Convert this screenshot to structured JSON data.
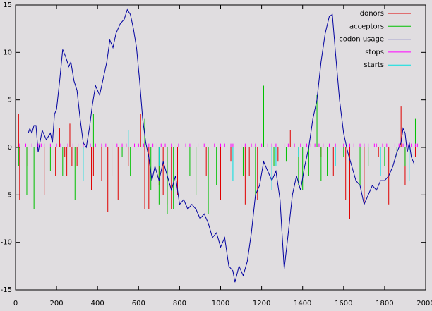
{
  "chart_data": {
    "type": "line",
    "xlim": [
      0,
      2000
    ],
    "xticks": [
      0,
      200,
      400,
      600,
      800,
      1000,
      1200,
      1400,
      1600,
      1800,
      2000
    ],
    "ylim": [
      -15,
      15
    ],
    "yticks": [
      -15,
      -10,
      -5,
      0,
      5,
      10,
      15
    ],
    "legend": "top-right",
    "series": [
      {
        "name": "donors",
        "color": "#e00000",
        "style": "impulses",
        "x": [
          15,
          20,
          60,
          140,
          195,
          215,
          240,
          250,
          265,
          275,
          300,
          370,
          380,
          420,
          450,
          470,
          500,
          550,
          610,
          630,
          650,
          700,
          720,
          740,
          760,
          790,
          930,
          1000,
          1050,
          1120,
          1140,
          1180,
          1280,
          1340,
          1490,
          1550,
          1610,
          1630,
          1700,
          1770,
          1820,
          1880,
          1900,
          1950
        ],
        "values": [
          3.5,
          -5.5,
          -2,
          -5,
          -3,
          2,
          -1,
          -3,
          2.5,
          -2,
          -2,
          -4.5,
          -3,
          -3.5,
          -6.8,
          -3,
          -5.5,
          -2,
          3.5,
          -6.5,
          -6.5,
          -4,
          -5,
          -6,
          -6.5,
          -5,
          -3,
          -5.5,
          -1.5,
          -6,
          -3,
          -5.5,
          -1.5,
          1.8,
          -1,
          -3,
          -5.5,
          -7.5,
          -6,
          -1,
          -6,
          4.3,
          -4,
          -1
        ]
      },
      {
        "name": "acceptors",
        "color": "#00c000",
        "style": "impulses",
        "x": [
          15,
          55,
          90,
          170,
          230,
          290,
          380,
          520,
          560,
          630,
          660,
          700,
          740,
          770,
          850,
          880,
          940,
          980,
          1110,
          1170,
          1210,
          1260,
          1320,
          1380,
          1400,
          1430,
          1470,
          1490,
          1520,
          1600,
          1680,
          1720,
          1800,
          1860,
          1900,
          1950
        ],
        "values": [
          -2,
          -5,
          -6.5,
          -2.5,
          -3,
          -5.5,
          3.5,
          -1,
          -3,
          3,
          -4.5,
          -6,
          -7,
          -6.5,
          -3,
          -5,
          -7,
          -4,
          -3,
          -5,
          6.5,
          -2,
          -1.5,
          -4,
          -4.5,
          -3,
          5.5,
          -3.5,
          -3,
          -1,
          -4,
          -2,
          -2,
          -1,
          -2,
          3
        ]
      },
      {
        "name": "codon usage",
        "color": "#0000a0",
        "style": "lines",
        "x": [
          62,
          70,
          80,
          90,
          100,
          110,
          130,
          150,
          170,
          180,
          190,
          200,
          215,
          230,
          245,
          260,
          270,
          285,
          300,
          315,
          330,
          345,
          360,
          375,
          390,
          410,
          425,
          445,
          460,
          475,
          490,
          510,
          530,
          545,
          560,
          575,
          590,
          605,
          620,
          635,
          650,
          665,
          680,
          700,
          720,
          740,
          760,
          780,
          800,
          820,
          840,
          860,
          880,
          900,
          920,
          940,
          960,
          980,
          1000,
          1020,
          1040,
          1060,
          1070,
          1090,
          1110,
          1130,
          1150,
          1170,
          1190,
          1210,
          1230,
          1250,
          1270,
          1290,
          1310,
          1330,
          1350,
          1370,
          1390,
          1410,
          1430,
          1450,
          1470,
          1490,
          1510,
          1530,
          1545,
          1560,
          1580,
          1600,
          1620,
          1640,
          1660,
          1680,
          1700,
          1720,
          1740,
          1760,
          1780,
          1800,
          1820,
          1840,
          1860,
          1880,
          1890,
          1900,
          1910,
          1920,
          1930,
          1945
        ],
        "values": [
          1.5,
          2,
          1.5,
          2.3,
          2.3,
          -0.5,
          1.8,
          0.8,
          1.5,
          0.5,
          3.5,
          4,
          7,
          10.3,
          9.5,
          8.5,
          9,
          7,
          6,
          3,
          0.5,
          0,
          2,
          4.5,
          6.5,
          5.5,
          7,
          9,
          11.3,
          10.5,
          12,
          13,
          13.5,
          14.5,
          14,
          12.5,
          10.5,
          7,
          3,
          0.5,
          -1,
          -3.5,
          -2,
          -3.5,
          -1.5,
          -3,
          -4.5,
          -3,
          -6,
          -5.5,
          -6.5,
          -6,
          -6.5,
          -7.5,
          -7,
          -8,
          -9.5,
          -9,
          -10.5,
          -9.5,
          -12.5,
          -13,
          -14.2,
          -12.5,
          -13.5,
          -12,
          -9,
          -5,
          -4,
          -1.5,
          -2.5,
          -3.5,
          -2.5,
          -5.5,
          -12.8,
          -9,
          -5,
          -3,
          -4.5,
          -2,
          0,
          3,
          5,
          9,
          12,
          13.8,
          14,
          10,
          5,
          1.5,
          -0.5,
          -2,
          -3.5,
          -4,
          -6,
          -5,
          -4,
          -4.5,
          -3.5,
          -3.5,
          -3,
          -2,
          -0.5,
          0.5,
          2,
          1.5,
          -0.5,
          0.5,
          -1,
          -1.8
        ]
      },
      {
        "name": "stops",
        "color": "#ff00ff",
        "style": "impulses",
        "x": [
          20,
          50,
          80,
          110,
          125,
          140,
          170,
          200,
          220,
          255,
          280,
          305,
          330,
          365,
          390,
          420,
          440,
          470,
          495,
          520,
          540,
          580,
          600,
          625,
          650,
          670,
          690,
          710,
          730,
          760,
          795,
          830,
          850,
          890,
          920,
          970,
          1000,
          1020,
          1050,
          1060,
          1100,
          1120,
          1150,
          1170,
          1200,
          1230,
          1250,
          1270,
          1310,
          1330,
          1360,
          1390,
          1420,
          1440,
          1460,
          1480,
          1500,
          1530,
          1560,
          1600,
          1630,
          1650,
          1680,
          1700,
          1720,
          1750,
          1760,
          1790,
          1810,
          1850,
          1870,
          1890,
          1910,
          1930,
          1950,
          1960
        ],
        "values": [
          0.4,
          0.4,
          0.4,
          0.4,
          0.4,
          0.4,
          0.4,
          0.4,
          0.4,
          0.4,
          0.4,
          0.4,
          0.4,
          0.4,
          0.4,
          0.4,
          0.4,
          0.4,
          0.4,
          0.4,
          0.4,
          0.4,
          0.4,
          0.4,
          0.4,
          0.4,
          0.4,
          0.4,
          0.4,
          0.4,
          0.4,
          0.4,
          0.4,
          0.4,
          0.4,
          0.4,
          0.4,
          0.4,
          0.4,
          0.4,
          0.4,
          0.4,
          0.4,
          0.4,
          0.4,
          0.4,
          0.4,
          0.4,
          0.4,
          0.4,
          0.4,
          0.4,
          0.4,
          0.4,
          0.4,
          0.4,
          0.4,
          0.4,
          0.4,
          0.4,
          0.4,
          0.4,
          0.4,
          0.4,
          0.4,
          0.4,
          0.4,
          0.4,
          0.4,
          0.4,
          0.4,
          0.4,
          0.4,
          0.4,
          0.4,
          0.4
        ]
      },
      {
        "name": "starts",
        "color": "#00e0e0",
        "style": "impulses",
        "x": [
          330,
          550,
          700,
          1060,
          1250,
          1270,
          1380,
          1560,
          1780,
          1920
        ],
        "values": [
          -3.5,
          1.8,
          -2,
          -3.5,
          -4.5,
          -2,
          -1,
          -2,
          -3,
          -3.5
        ]
      }
    ]
  }
}
